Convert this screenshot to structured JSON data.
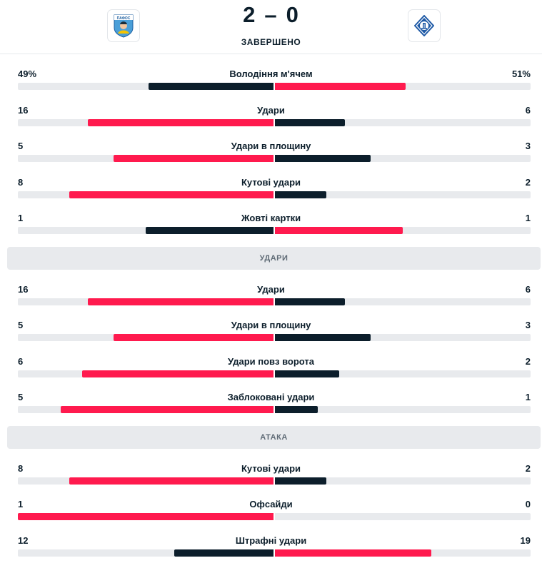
{
  "match": {
    "home_score": "2",
    "separator": "–",
    "away_score": "0",
    "status": "ЗАВЕРШЕНО",
    "home_logo_text": "ПАФОС",
    "home_logo_icon": "pafos-crest-icon",
    "away_logo_icon": "dynamo-kyiv-crest-icon",
    "colors": {
      "home": "#ff1a4e",
      "away": "#0c1e2b",
      "track": "#e8eaed"
    }
  },
  "groups": [
    {
      "title": "",
      "stats": [
        {
          "name": "Володіння м'ячем",
          "home": "49%",
          "away": "51%",
          "home_value": 49,
          "away_value": 51,
          "home_leads": false
        },
        {
          "name": "Удари",
          "home": "16",
          "away": "6",
          "home_value": 16,
          "away_value": 6,
          "home_leads": true
        },
        {
          "name": "Удари в площину",
          "home": "5",
          "away": "3",
          "home_value": 5,
          "away_value": 3,
          "home_leads": true
        },
        {
          "name": "Кутові удари",
          "home": "8",
          "away": "2",
          "home_value": 8,
          "away_value": 2,
          "home_leads": true
        },
        {
          "name": "Жовті картки",
          "home": "1",
          "away": "1",
          "home_value": 1,
          "away_value": 1,
          "home_leads": false
        }
      ]
    },
    {
      "title": "УДАРИ",
      "stats": [
        {
          "name": "Удари",
          "home": "16",
          "away": "6",
          "home_value": 16,
          "away_value": 6,
          "home_leads": true
        },
        {
          "name": "Удари в площину",
          "home": "5",
          "away": "3",
          "home_value": 5,
          "away_value": 3,
          "home_leads": true
        },
        {
          "name": "Удари повз ворота",
          "home": "6",
          "away": "2",
          "home_value": 6,
          "away_value": 2,
          "home_leads": true
        },
        {
          "name": "Заблоковані удари",
          "home": "5",
          "away": "1",
          "home_value": 5,
          "away_value": 1,
          "home_leads": true
        }
      ]
    },
    {
      "title": "АТАКА",
      "stats": [
        {
          "name": "Кутові удари",
          "home": "8",
          "away": "2",
          "home_value": 8,
          "away_value": 2,
          "home_leads": true
        },
        {
          "name": "Офсайди",
          "home": "1",
          "away": "0",
          "home_value": 1,
          "away_value": 0,
          "home_leads": true
        },
        {
          "name": "Штрафні удари",
          "home": "12",
          "away": "19",
          "home_value": 12,
          "away_value": 19,
          "home_leads": false
        }
      ]
    }
  ]
}
